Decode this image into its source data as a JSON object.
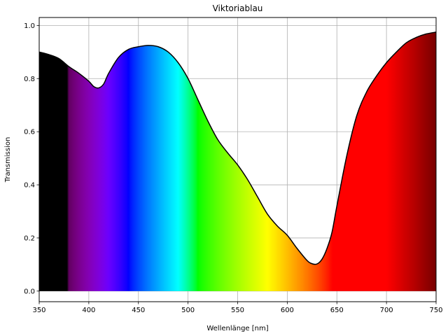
{
  "chart_data": {
    "type": "area",
    "title": "Viktoriablau",
    "xlabel": "Wellenlänge [nm]",
    "ylabel": "Transmission",
    "xlim": [
      350,
      750
    ],
    "ylim": [
      -0.04,
      1.03
    ],
    "xticks": [
      350,
      400,
      450,
      500,
      550,
      600,
      650,
      700,
      750
    ],
    "yticks": [
      0.0,
      0.2,
      0.4,
      0.6,
      0.8,
      1.0
    ],
    "xtick_labels": [
      "350",
      "400",
      "450",
      "500",
      "550",
      "600",
      "650",
      "700",
      "750"
    ],
    "ytick_labels": [
      "0.0",
      "0.2",
      "0.4",
      "0.6",
      "0.8",
      "1.0"
    ],
    "grid": true,
    "fill": "visible-spectrum colour gradient under the curve",
    "line_color": "#000000",
    "series": [
      {
        "x": [
          350,
          360,
          370,
          380,
          390,
          400,
          405,
          410,
          415,
          420,
          430,
          440,
          450,
          460,
          470,
          480,
          490,
          500,
          510,
          520,
          530,
          540,
          550,
          560,
          570,
          580,
          590,
          600,
          610,
          620,
          625,
          630,
          635,
          640,
          645,
          650,
          660,
          670,
          680,
          690,
          700,
          710,
          720,
          730,
          740,
          750
        ],
        "y": [
          0.9,
          0.89,
          0.875,
          0.845,
          0.82,
          0.79,
          0.77,
          0.765,
          0.78,
          0.82,
          0.88,
          0.91,
          0.92,
          0.925,
          0.92,
          0.9,
          0.86,
          0.8,
          0.72,
          0.64,
          0.57,
          0.52,
          0.475,
          0.42,
          0.355,
          0.29,
          0.245,
          0.21,
          0.16,
          0.115,
          0.103,
          0.102,
          0.12,
          0.16,
          0.22,
          0.32,
          0.51,
          0.66,
          0.75,
          0.81,
          0.86,
          0.9,
          0.935,
          0.955,
          0.968,
          0.975
        ]
      }
    ],
    "colors": {
      "grid": "#b0b0b0",
      "axes": "#000000",
      "line": "#000000"
    }
  }
}
